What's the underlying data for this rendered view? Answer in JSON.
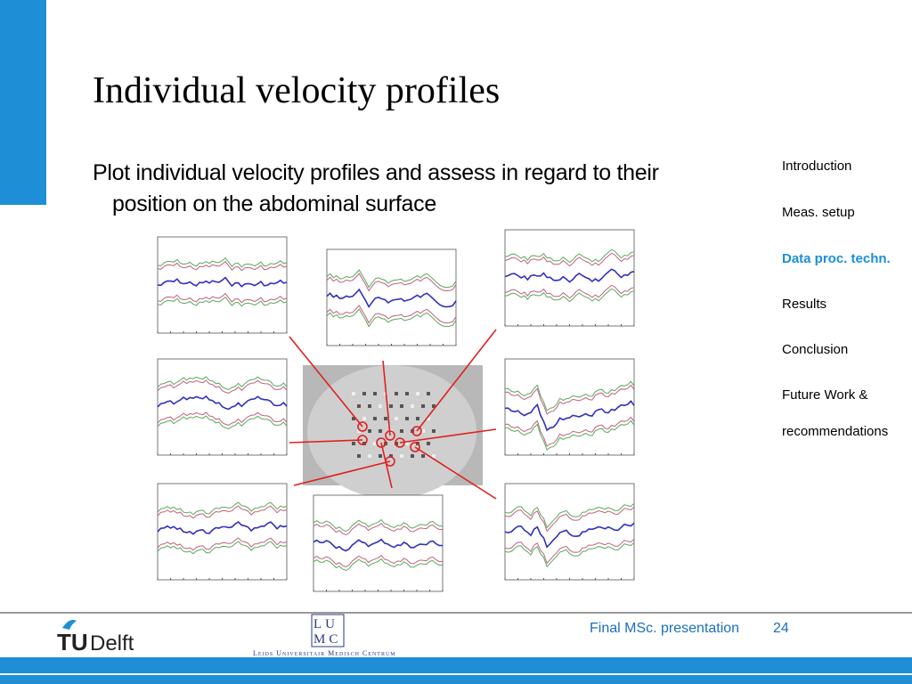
{
  "slide": {
    "title": "Individual velocity profiles",
    "bullet_line1": "Plot individual velocity profiles and assess in regard to their",
    "bullet_line2": "position on the abdominal surface",
    "nav": [
      "Introduction",
      "Meas. setup",
      "Data proc. techn.",
      "Results",
      "Conclusion",
      "Future Work &",
      "recommendations"
    ],
    "nav_active": 2,
    "footer_text": "Final MSc. presentation",
    "page_number": "24",
    "logo_tu": "TU",
    "logo_delft": "Delft",
    "logo_lumc_top": "LU",
    "logo_lumc_bottom": "MC",
    "logo_lumc_name": "Leids Universitair Medisch Centrum"
  }
}
